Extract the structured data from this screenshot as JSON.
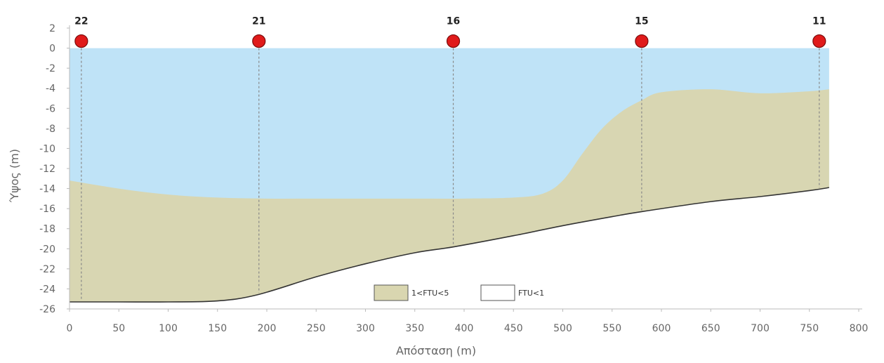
{
  "chart_data": {
    "type": "area",
    "title": "",
    "xlabel": "Απόσταση (m)",
    "ylabel": "Ύψος (m)",
    "xlim": [
      0,
      800
    ],
    "ylim": [
      -26,
      2
    ],
    "x_ticks": [
      0,
      50,
      100,
      150,
      200,
      250,
      300,
      350,
      400,
      450,
      500,
      550,
      600,
      650,
      700,
      750,
      800
    ],
    "y_ticks": [
      2,
      0,
      -2,
      -4,
      -6,
      -8,
      -10,
      -12,
      -14,
      -16,
      -18,
      -20,
      -22,
      -24,
      -26
    ],
    "grid": false,
    "water_surface": 0,
    "stations": [
      {
        "label": "22",
        "x": 12
      },
      {
        "label": "21",
        "x": 192
      },
      {
        "label": "16",
        "x": 389
      },
      {
        "label": "15",
        "x": 580
      },
      {
        "label": "11",
        "x": 760
      }
    ],
    "bottom_profile": {
      "x": [
        0,
        50,
        100,
        150,
        190,
        250,
        300,
        350,
        390,
        450,
        500,
        550,
        580,
        650,
        700,
        750,
        770
      ],
      "y": [
        -25.3,
        -25.3,
        -25.3,
        -25.2,
        -24.6,
        -22.8,
        -21.5,
        -20.4,
        -19.8,
        -18.7,
        -17.7,
        -16.8,
        -16.3,
        -15.3,
        -14.8,
        -14.2,
        -13.9
      ]
    },
    "turbid_layer_top": {
      "x": [
        0,
        50,
        100,
        150,
        200,
        250,
        300,
        350,
        400,
        450,
        480,
        500,
        520,
        540,
        560,
        580,
        600,
        650,
        700,
        750,
        770
      ],
      "y": [
        -13.2,
        -14.0,
        -14.6,
        -14.9,
        -15.0,
        -15.0,
        -15.0,
        -15.0,
        -15.0,
        -14.9,
        -14.5,
        -13.2,
        -10.5,
        -8.0,
        -6.3,
        -5.2,
        -4.4,
        -4.1,
        -4.5,
        -4.3,
        -4.1
      ]
    },
    "series": [
      {
        "name": "1<FTU<5",
        "color": "#d9d6b0"
      },
      {
        "name": "FTU<1",
        "color": "#bfe3f7"
      }
    ],
    "legend_position": "bottom-center",
    "colors": {
      "water": "#bfe3f7",
      "turbid": "#d9d6b0",
      "bottom_line": "#333333",
      "station_marker": "#e01b1b",
      "station_line": "#888888",
      "axis": "#bbbbbb"
    }
  }
}
